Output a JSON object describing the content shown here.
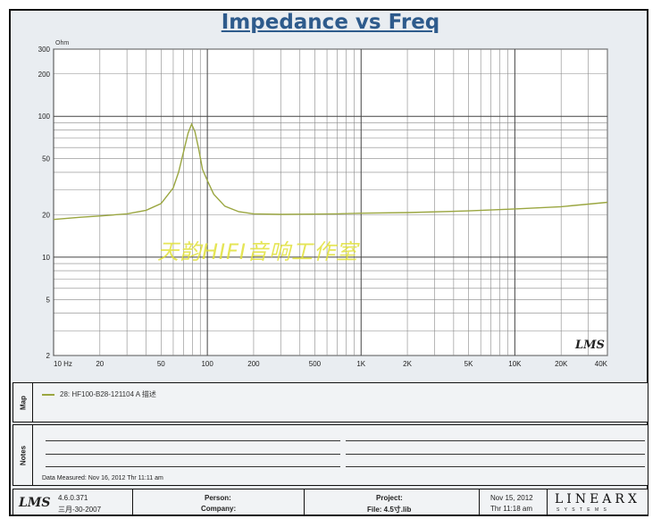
{
  "chart_data": {
    "type": "line",
    "title": "Impedance vs Freq",
    "ylabel": "Ohm",
    "xscale": "log",
    "yscale": "log",
    "xlim": [
      10,
      40000
    ],
    "ylim": [
      2,
      300
    ],
    "grid": true,
    "x_ticks": [
      {
        "v": 10,
        "label": "10 Hz"
      },
      {
        "v": 20,
        "label": "20"
      },
      {
        "v": 50,
        "label": "50"
      },
      {
        "v": 100,
        "label": "100"
      },
      {
        "v": 200,
        "label": "200"
      },
      {
        "v": 500,
        "label": "500"
      },
      {
        "v": 1000,
        "label": "1K"
      },
      {
        "v": 2000,
        "label": "2K"
      },
      {
        "v": 5000,
        "label": "5K"
      },
      {
        "v": 10000,
        "label": "10K"
      },
      {
        "v": 20000,
        "label": "20K"
      },
      {
        "v": 40000,
        "label": "40K"
      }
    ],
    "y_ticks": [
      {
        "v": 300,
        "label": "300"
      },
      {
        "v": 200,
        "label": "200"
      },
      {
        "v": 100,
        "label": "100"
      },
      {
        "v": 50,
        "label": "50"
      },
      {
        "v": 20,
        "label": "20"
      },
      {
        "v": 10,
        "label": "10"
      },
      {
        "v": 5,
        "label": "5"
      },
      {
        "v": 2,
        "label": "2"
      }
    ],
    "series": [
      {
        "name": "28: HF100-B28-121104 A",
        "color": "#9aa640",
        "x": [
          10,
          15,
          20,
          30,
          40,
          50,
          60,
          65,
          70,
          75,
          79,
          83,
          88,
          93,
          100,
          110,
          130,
          160,
          200,
          300,
          500,
          700,
          1000,
          2000,
          5000,
          10000,
          20000,
          40000
        ],
        "y": [
          18.5,
          19.2,
          19.6,
          20.3,
          21.5,
          24,
          31,
          40,
          56,
          76,
          88,
          78,
          58,
          42,
          35,
          28,
          23,
          21,
          20.3,
          20.1,
          20.2,
          20.3,
          20.5,
          20.7,
          21.3,
          22,
          22.8,
          24.5
        ]
      }
    ]
  },
  "map_section": {
    "tab_label": "Map",
    "legend_entry": "28: HF100-B28-121104  A  描述"
  },
  "notes_section": {
    "tab_label": "Notes",
    "date_measured": "Data Measured: Nov 16, 2012  Thr 11:11 am"
  },
  "watermark": "天韵HIFI音响工作室",
  "plot_logo": "LMS",
  "footer": {
    "logo": "LMS",
    "version": "4.6.0.371",
    "version_date": "三月-30-2007",
    "person_label": "Person:",
    "company_label": "Company:",
    "project_label": "Project:",
    "file_label": "File: 4.5寸.lib",
    "date": "Nov 15, 2012",
    "time": "Thr 11:18 am",
    "brand": "LINEARX",
    "brand_sub": "S Y S T E M S"
  }
}
